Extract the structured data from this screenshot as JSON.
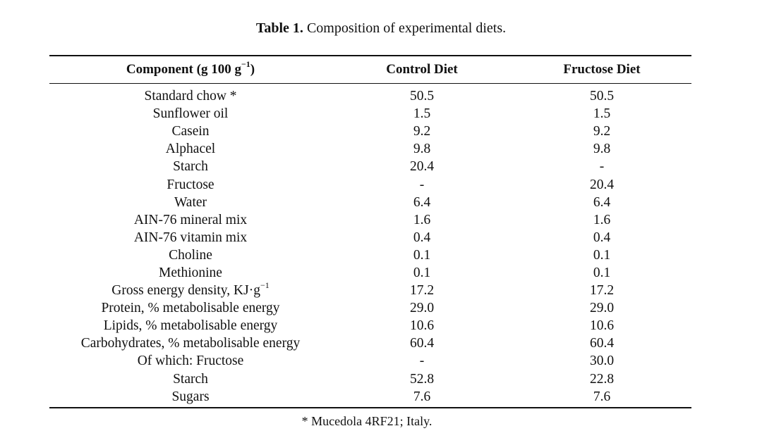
{
  "caption": {
    "label": "Table 1.",
    "text": "Composition of experimental diets."
  },
  "table": {
    "headers": {
      "component_prefix": "Component (g 100 g",
      "component_sup": "−1",
      "component_suffix": ")",
      "control": "Control Diet",
      "fructose": "Fructose Diet"
    },
    "rows": [
      {
        "component": "Standard chow *",
        "control": "50.5",
        "fructose": "50.5"
      },
      {
        "component": "Sunflower oil",
        "control": "1.5",
        "fructose": "1.5"
      },
      {
        "component": "Casein",
        "control": "9.2",
        "fructose": "9.2"
      },
      {
        "component": "Alphacel",
        "control": "9.8",
        "fructose": "9.8"
      },
      {
        "component": "Starch",
        "control": "20.4",
        "fructose": "-"
      },
      {
        "component": "Fructose",
        "control": "-",
        "fructose": "20.4"
      },
      {
        "component": "Water",
        "control": "6.4",
        "fructose": "6.4"
      },
      {
        "component": "AIN-76 mineral mix",
        "control": "1.6",
        "fructose": "1.6"
      },
      {
        "component": "AIN-76 vitamin mix",
        "control": "0.4",
        "fructose": "0.4"
      },
      {
        "component": "Choline",
        "control": "0.1",
        "fructose": "0.1"
      },
      {
        "component": "Methionine",
        "control": "0.1",
        "fructose": "0.1"
      },
      {
        "component": "Gross energy density, KJ·g",
        "component_sup": "−1",
        "control": "17.2",
        "fructose": "17.2"
      },
      {
        "component": "Protein, % metabolisable energy",
        "control": "29.0",
        "fructose": "29.0"
      },
      {
        "component": "Lipids, % metabolisable energy",
        "control": "10.6",
        "fructose": "10.6"
      },
      {
        "component": "Carbohydrates, % metabolisable energy",
        "control": "60.4",
        "fructose": "60.4"
      },
      {
        "component": "Of which: Fructose",
        "control": "-",
        "fructose": "30.0"
      },
      {
        "component": "Starch",
        "control": "52.8",
        "fructose": "22.8"
      },
      {
        "component": "Sugars",
        "control": "7.6",
        "fructose": "7.6"
      }
    ]
  },
  "footnote": "* Mucedola 4RF21; Italy."
}
